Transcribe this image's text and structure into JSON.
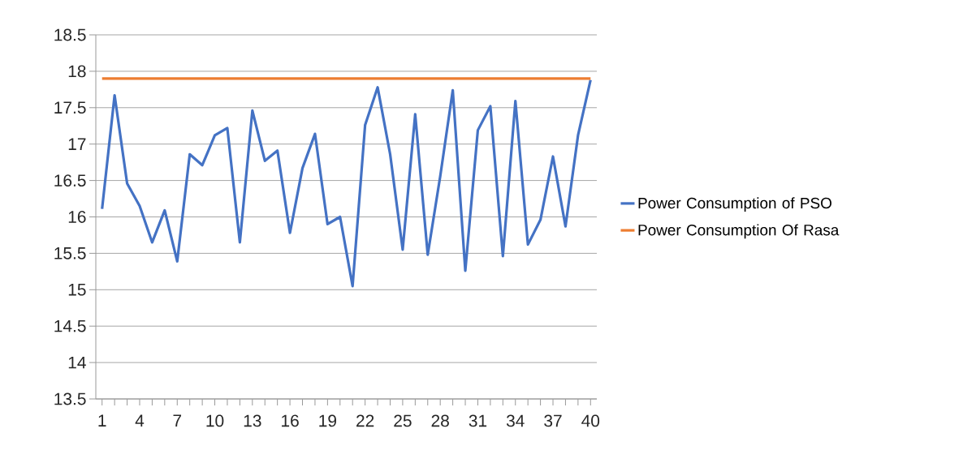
{
  "chart_data": {
    "type": "line",
    "categories": [
      "1",
      null,
      null,
      "4",
      null,
      null,
      "7",
      null,
      null,
      "10",
      null,
      null,
      "13",
      null,
      null,
      "16",
      null,
      null,
      "19",
      null,
      null,
      "22",
      null,
      null,
      "25",
      null,
      null,
      "28",
      null,
      null,
      "31",
      null,
      null,
      "34",
      null,
      null,
      "37",
      null,
      null,
      "40"
    ],
    "series": [
      {
        "name": "Power Consumption of PSO",
        "color": "#4472c4",
        "values": [
          16.11,
          17.67,
          16.46,
          16.15,
          15.65,
          16.09,
          15.39,
          16.86,
          16.71,
          17.12,
          17.22,
          15.65,
          17.46,
          16.77,
          16.91,
          15.78,
          16.67,
          17.14,
          15.9,
          16.0,
          15.05,
          17.26,
          17.78,
          16.86,
          15.55,
          17.41,
          15.48,
          16.56,
          17.74,
          15.26,
          17.19,
          17.52,
          15.46,
          17.59,
          15.62,
          15.96,
          16.83,
          15.87,
          17.12,
          17.88
        ]
      },
      {
        "name": "Power Consumption Of Rasa",
        "color": "#ed7d31",
        "values": [
          17.9,
          17.9,
          17.9,
          17.9,
          17.9,
          17.9,
          17.9,
          17.9,
          17.9,
          17.9,
          17.9,
          17.9,
          17.9,
          17.9,
          17.9,
          17.9,
          17.9,
          17.9,
          17.9,
          17.9,
          17.9,
          17.9,
          17.9,
          17.9,
          17.9,
          17.9,
          17.9,
          17.9,
          17.9,
          17.9,
          17.9,
          17.9,
          17.9,
          17.9,
          17.9,
          17.9,
          17.9,
          17.9,
          17.9,
          17.9
        ]
      }
    ],
    "ylim": [
      13.5,
      18.5
    ],
    "yticks": [
      13.5,
      14,
      14.5,
      15,
      15.5,
      16,
      16.5,
      17,
      17.5,
      18,
      18.5
    ],
    "grid": "y",
    "legend": "right",
    "marker": "none",
    "line_style": "solid"
  }
}
